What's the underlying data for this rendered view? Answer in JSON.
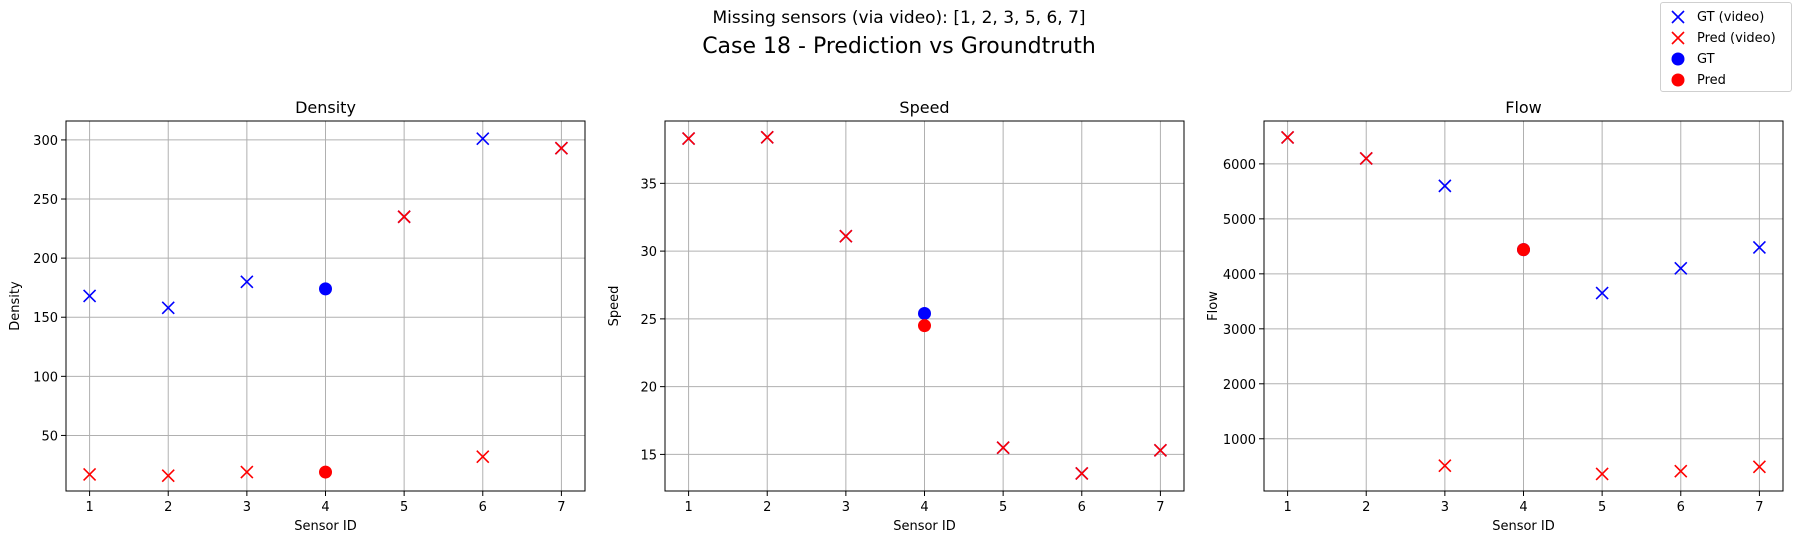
{
  "suptitle": "Missing sensors (via video): [1, 2, 3, 5, 6, 7]",
  "title": "Case 18 - Prediction vs Groundtruth",
  "legend": {
    "placement": "top-right",
    "entries": [
      {
        "label": "GT (video)",
        "marker": "x",
        "color": "#0000ff"
      },
      {
        "label": "Pred (video)",
        "marker": "x",
        "color": "#ff0000"
      },
      {
        "label": "GT",
        "marker": "dot",
        "color": "#0000ff"
      },
      {
        "label": "Pred",
        "marker": "dot",
        "color": "#ff0000"
      }
    ]
  },
  "colors": {
    "gt": "#0000ff",
    "pred": "#ff0000",
    "grid": "#b0b0b0"
  },
  "chart_data": [
    {
      "type": "scatter",
      "title": "Density",
      "xlabel": "Sensor ID",
      "ylabel": "Density",
      "xlim": [
        0.7,
        7.3
      ],
      "ylim": [
        3,
        316
      ],
      "xticks": [
        1,
        2,
        3,
        4,
        5,
        6,
        7
      ],
      "yticks": [
        50,
        100,
        150,
        200,
        250,
        300
      ],
      "grid": true,
      "series": [
        {
          "name": "GT (video)",
          "marker": "x",
          "color": "#0000ff",
          "points": [
            [
              1,
              168
            ],
            [
              2,
              158
            ],
            [
              3,
              180
            ],
            [
              5,
              235
            ],
            [
              6,
              301
            ],
            [
              7,
              293
            ]
          ]
        },
        {
          "name": "Pred (video)",
          "marker": "x",
          "color": "#ff0000",
          "points": [
            [
              1,
              17
            ],
            [
              2,
              16
            ],
            [
              3,
              19
            ],
            [
              5,
              235
            ],
            [
              6,
              32
            ],
            [
              7,
              293
            ]
          ]
        },
        {
          "name": "GT",
          "marker": "dot",
          "color": "#0000ff",
          "points": [
            [
              4,
              174
            ]
          ]
        },
        {
          "name": "Pred",
          "marker": "dot",
          "color": "#ff0000",
          "points": [
            [
              4,
              19
            ]
          ]
        }
      ]
    },
    {
      "type": "scatter",
      "title": "Speed",
      "xlabel": "Sensor ID",
      "ylabel": "Speed",
      "xlim": [
        0.7,
        7.3
      ],
      "ylim": [
        12.3,
        39.6
      ],
      "xticks": [
        1,
        2,
        3,
        4,
        5,
        6,
        7
      ],
      "yticks": [
        15,
        20,
        25,
        30,
        35
      ],
      "grid": true,
      "series": [
        {
          "name": "GT (video)",
          "marker": "x",
          "color": "#0000ff",
          "points": [
            [
              1,
              38.3
            ],
            [
              2,
              38.4
            ],
            [
              3,
              31.1
            ],
            [
              5,
              15.5
            ],
            [
              6,
              13.6
            ],
            [
              7,
              15.3
            ]
          ]
        },
        {
          "name": "Pred (video)",
          "marker": "x",
          "color": "#ff0000",
          "points": [
            [
              1,
              38.3
            ],
            [
              2,
              38.4
            ],
            [
              3,
              31.1
            ],
            [
              5,
              15.5
            ],
            [
              6,
              13.6
            ],
            [
              7,
              15.3
            ]
          ]
        },
        {
          "name": "GT",
          "marker": "dot",
          "color": "#0000ff",
          "points": [
            [
              4,
              25.4
            ]
          ]
        },
        {
          "name": "Pred",
          "marker": "dot",
          "color": "#ff0000",
          "points": [
            [
              4,
              24.5
            ]
          ]
        }
      ]
    },
    {
      "type": "scatter",
      "title": "Flow",
      "xlabel": "Sensor ID",
      "ylabel": "Flow",
      "xlim": [
        0.7,
        7.3
      ],
      "ylim": [
        50,
        6780
      ],
      "xticks": [
        1,
        2,
        3,
        4,
        5,
        6,
        7
      ],
      "yticks": [
        1000,
        2000,
        3000,
        4000,
        5000,
        6000
      ],
      "grid": true,
      "series": [
        {
          "name": "GT (video)",
          "marker": "x",
          "color": "#0000ff",
          "points": [
            [
              1,
              6480
            ],
            [
              2,
              6100
            ],
            [
              3,
              5600
            ],
            [
              5,
              3650
            ],
            [
              6,
              4100
            ],
            [
              7,
              4480
            ]
          ]
        },
        {
          "name": "Pred (video)",
          "marker": "x",
          "color": "#ff0000",
          "points": [
            [
              1,
              6480
            ],
            [
              2,
              6100
            ],
            [
              3,
              510
            ],
            [
              5,
              360
            ],
            [
              6,
              410
            ],
            [
              7,
              490
            ]
          ]
        },
        {
          "name": "GT",
          "marker": "dot",
          "color": "#0000ff",
          "points": [
            [
              4,
              4440
            ]
          ]
        },
        {
          "name": "Pred",
          "marker": "dot",
          "color": "#ff0000",
          "points": [
            [
              4,
              4440
            ]
          ]
        }
      ]
    }
  ]
}
